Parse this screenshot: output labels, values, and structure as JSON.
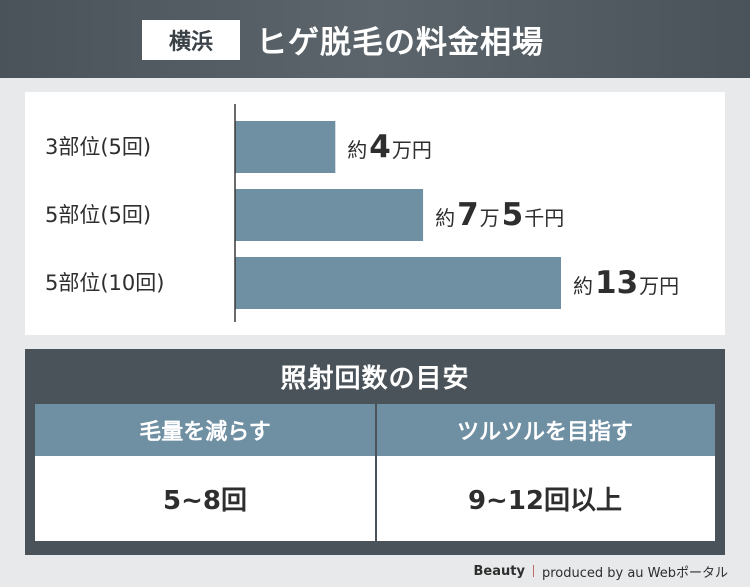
{
  "header": {
    "tag": "横浜",
    "title": "ヒゲ脱毛の料金相場"
  },
  "chart_data": {
    "type": "bar",
    "orientation": "horizontal",
    "categories": [
      "3部位(5回)",
      "5部位(5回)",
      "5部位(10回)"
    ],
    "values": [
      40000,
      75000,
      130000
    ],
    "value_labels": [
      [
        {
          "t": "約",
          "s": "small"
        },
        {
          "t": "4",
          "s": "big"
        },
        {
          "t": "万円",
          "s": "small"
        }
      ],
      [
        {
          "t": "約",
          "s": "small"
        },
        {
          "t": "7",
          "s": "big"
        },
        {
          "t": "万",
          "s": "small"
        },
        {
          "t": "5",
          "s": "big"
        },
        {
          "t": "千円",
          "s": "small"
        }
      ],
      [
        {
          "t": "約",
          "s": "small"
        },
        {
          "t": "13",
          "s": "big"
        },
        {
          "t": "万円",
          "s": "small"
        }
      ]
    ],
    "xlim": [
      0,
      130000
    ],
    "bar_color": "#6f8fa3",
    "grid": false,
    "title": "",
    "xlabel": "",
    "ylabel": ""
  },
  "sessions": {
    "title": "照射回数の目安",
    "columns": [
      {
        "label": "毛量を減らす",
        "value": "5~8回"
      },
      {
        "label": "ツルツルを目指す",
        "value": "9~12回以上"
      }
    ]
  },
  "footer": {
    "brand": "Beauty",
    "credit": "produced by au Webポータル"
  },
  "colors": {
    "header_bg": "#4a5359",
    "bar": "#6f8fa3",
    "table_head": "#6f8fa3"
  }
}
